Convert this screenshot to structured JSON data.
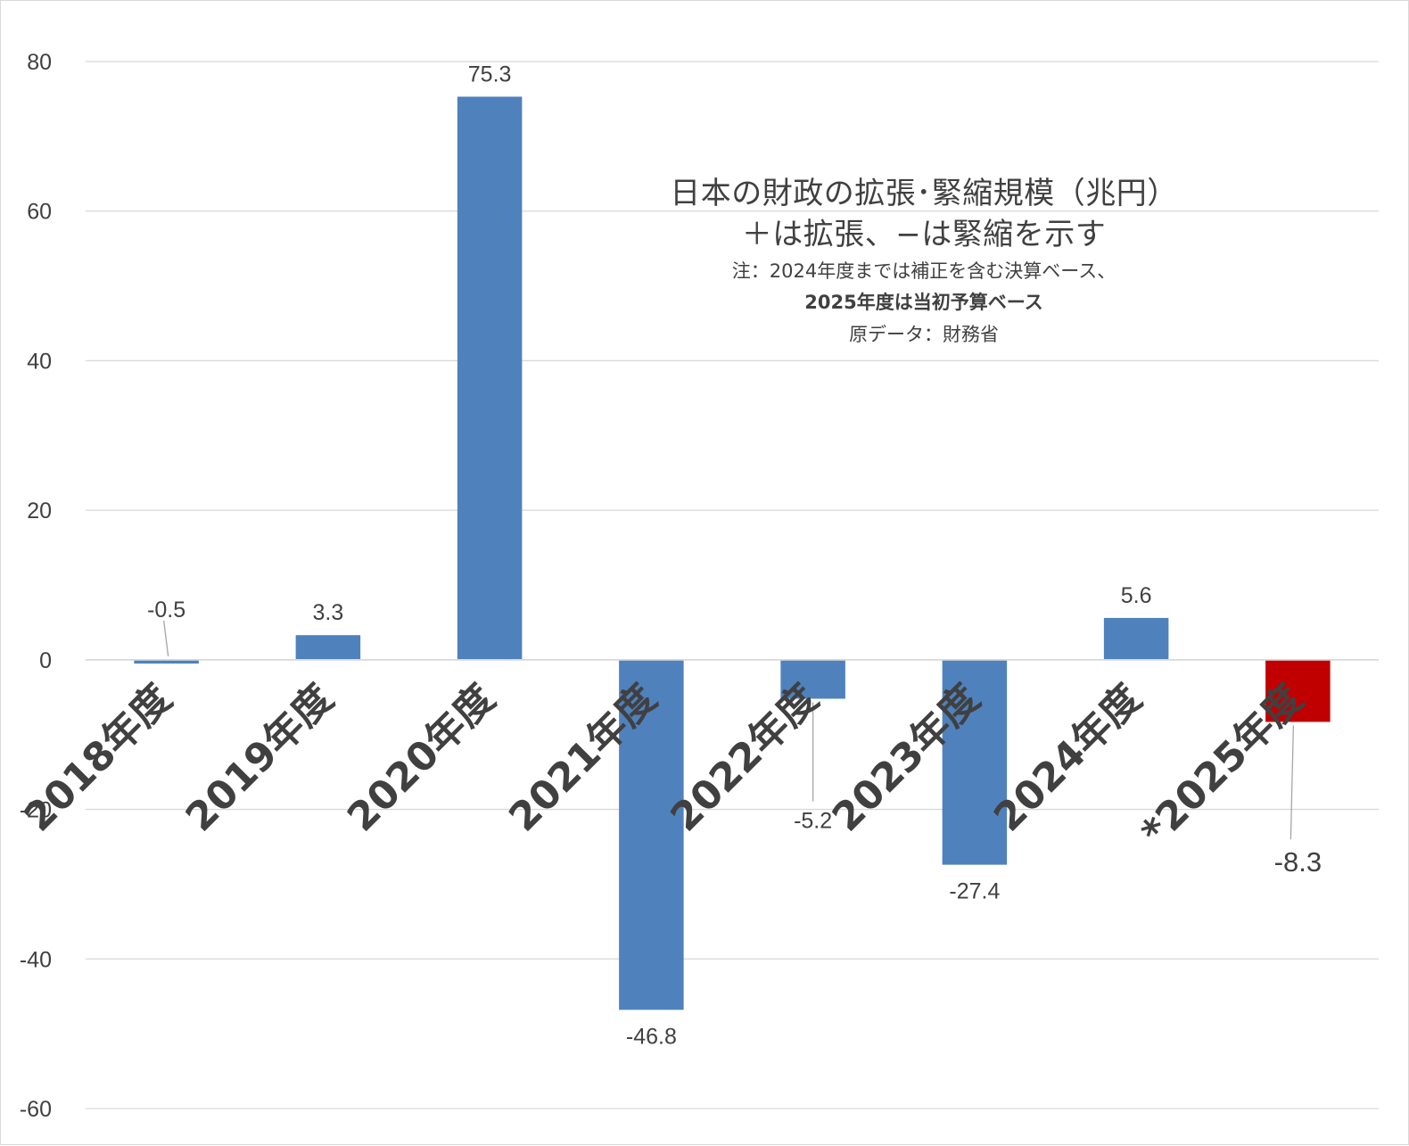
{
  "chart_data": {
    "type": "bar",
    "title_lines": [
      "日本の財政の拡張･緊縮規模（兆円）",
      "＋は拡張、−は緊縮を示す"
    ],
    "notes": [
      "注：2024年度までは補正を含む決算ベース、",
      "2025年度は当初予算ベース",
      "原データ：財務省"
    ],
    "categories": [
      "2018年度",
      "2019年度",
      "2020年度",
      "2021年度",
      "2022年度",
      "2023年度",
      "2024年度",
      "*2025年度"
    ],
    "values": [
      -0.5,
      3.3,
      75.3,
      -46.8,
      -5.2,
      -27.4,
      5.6,
      -8.3
    ],
    "data_labels": [
      "-0.5",
      "3.3",
      "75.3",
      "-46.8",
      "-5.2",
      "-27.4",
      "5.6",
      "-8.3"
    ],
    "bar_colors": [
      "#4f81bd",
      "#4f81bd",
      "#4f81bd",
      "#4f81bd",
      "#4f81bd",
      "#4f81bd",
      "#4f81bd",
      "#c00000"
    ],
    "yticks": [
      80,
      60,
      40,
      20,
      0,
      -20,
      -40,
      -60
    ],
    "ylim": [
      -60,
      80
    ],
    "grid": true,
    "xlabel": "",
    "ylabel": "",
    "colors": {
      "bar": "#4f81bd",
      "highlight": "#c00000",
      "gridline": "#d9d9d9",
      "text": "#404040",
      "leader": "#a6a6a6"
    }
  }
}
